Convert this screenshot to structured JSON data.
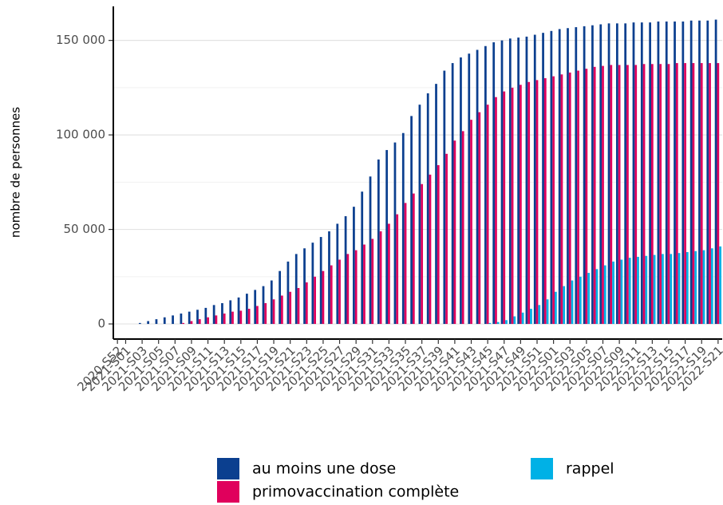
{
  "chart_data": {
    "type": "bar",
    "y_label": "nombre de personnes",
    "categories": [
      "2020-S52",
      "2021-S01",
      null,
      "2021-S03",
      null,
      "2021-S05",
      null,
      "2021-S07",
      null,
      "2021-S09",
      null,
      "2021-S11",
      null,
      "2021-S13",
      null,
      "2021-S15",
      null,
      "2021-S17",
      null,
      "2021-S19",
      null,
      "2021-S21",
      null,
      "2021-S23",
      null,
      "2021-S25",
      null,
      "2021-S27",
      null,
      "2021-S29",
      null,
      "2021-S31",
      null,
      "2021-S33",
      null,
      "2021-S35",
      null,
      "2021-S37",
      null,
      "2021-S39",
      null,
      "2021-S41",
      null,
      "2021-S43",
      null,
      "2021-S45",
      null,
      "2021-S47",
      null,
      "2021-S49",
      null,
      "2021-S51",
      null,
      "2022-S01",
      null,
      "2022-S03",
      null,
      "2022-S05",
      null,
      "2022-S07",
      null,
      "2022-S09",
      null,
      "2022-S11",
      null,
      "2022-S13",
      null,
      "2022-S15",
      null,
      "2022-S17",
      null,
      "2022-S19",
      null,
      "2022-S21"
    ],
    "series": [
      {
        "name": "au moins une dose",
        "color": "#0b3f8f",
        "values": [
          0,
          0,
          0,
          500,
          1500,
          2500,
          3500,
          4500,
          5500,
          6500,
          7500,
          8500,
          10000,
          11000,
          12500,
          14000,
          16000,
          18000,
          20000,
          23000,
          28000,
          33000,
          37000,
          40000,
          43000,
          46000,
          49000,
          53000,
          57000,
          62000,
          70000,
          78000,
          87000,
          92000,
          96000,
          101000,
          110000,
          116000,
          122000,
          127000,
          134000,
          138000,
          141000,
          143000,
          145000,
          147000,
          149000,
          150000,
          151000,
          151500,
          152000,
          153000,
          154000,
          155000,
          156000,
          156500,
          157000,
          157500,
          158000,
          158500,
          159000,
          159000,
          159000,
          159500,
          159500,
          159500,
          160000,
          160000,
          160000,
          160000,
          160500,
          160500,
          160500,
          161000
        ]
      },
      {
        "name": "primovaccination complète",
        "color": "#e0005c",
        "values": [
          0,
          0,
          0,
          0,
          0,
          0,
          0,
          0,
          500,
          1500,
          2500,
          3500,
          4500,
          5500,
          6500,
          7000,
          8000,
          9500,
          11000,
          13000,
          15000,
          17000,
          19000,
          22000,
          25000,
          28000,
          31000,
          34000,
          37000,
          39000,
          42000,
          45000,
          49000,
          53000,
          58000,
          64000,
          69000,
          74000,
          79000,
          84000,
          90000,
          97000,
          102000,
          108000,
          112000,
          116000,
          120000,
          123000,
          125000,
          126500,
          128000,
          129000,
          130000,
          131000,
          132000,
          133000,
          134000,
          135000,
          136000,
          136500,
          137000,
          137000,
          137000,
          137000,
          137500,
          137500,
          137500,
          137500,
          138000,
          138000,
          138000,
          138000,
          138000,
          138000
        ]
      },
      {
        "name": "rappel",
        "color": "#00b1e6",
        "values": [
          0,
          0,
          0,
          0,
          0,
          0,
          0,
          0,
          0,
          0,
          0,
          0,
          0,
          0,
          0,
          0,
          0,
          0,
          0,
          0,
          0,
          0,
          0,
          0,
          0,
          0,
          0,
          0,
          0,
          0,
          0,
          0,
          0,
          0,
          0,
          0,
          0,
          0,
          0,
          0,
          0,
          0,
          0,
          0,
          0,
          500,
          1000,
          2000,
          4000,
          6000,
          8000,
          10000,
          13000,
          17000,
          20000,
          23000,
          25000,
          27000,
          29000,
          31000,
          33000,
          34000,
          35000,
          35500,
          36000,
          36500,
          37000,
          37000,
          37500,
          38000,
          38500,
          39000,
          40000,
          41000
        ]
      }
    ],
    "ylim": [
      -8000,
      168000
    ],
    "yticks": [
      0,
      {
        "value": 50000,
        "label": "50 000"
      },
      {
        "value": 100000,
        "label": "100 000"
      },
      {
        "value": 150000,
        "label": "150 000"
      }
    ],
    "grid": true
  }
}
